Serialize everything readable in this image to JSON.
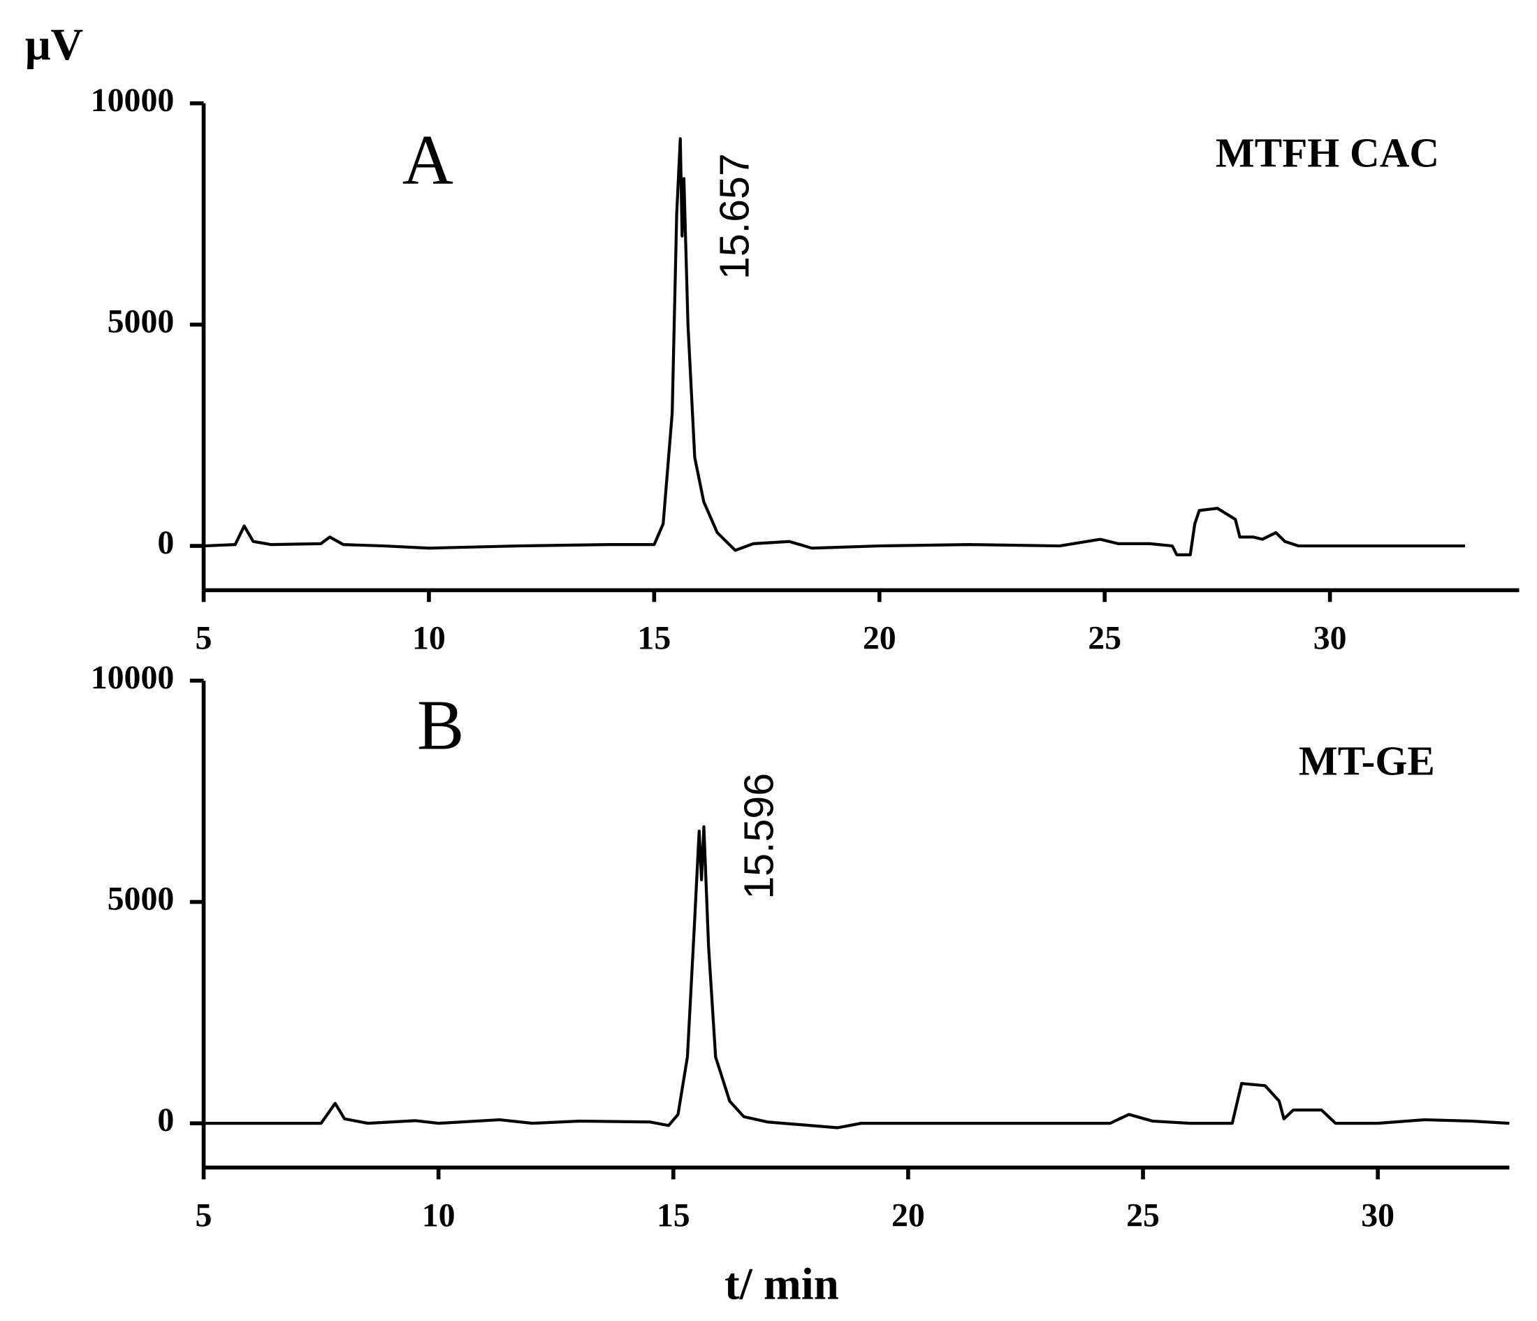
{
  "chart_data": [
    {
      "type": "line",
      "y_label": "μV",
      "panel_label": "A",
      "annotation": "MTFH CAC",
      "peak_label": "15.657",
      "xlim": [
        5,
        34.2
      ],
      "xticks": [
        5,
        10,
        15,
        20,
        25,
        30
      ],
      "ylim": [
        -1000,
        10000
      ],
      "yticks": [
        0,
        5000,
        10000
      ],
      "series": [
        {
          "color": "#000000",
          "x": [
            5,
            5.7,
            5.9,
            6.1,
            6.5,
            7.6,
            7.8,
            8.1,
            9,
            10,
            12,
            14,
            15,
            15.2,
            15.4,
            15.5,
            15.58,
            15.62,
            15.66,
            15.75,
            15.9,
            16.1,
            16.4,
            16.6,
            16.8,
            17.2,
            18,
            18.5,
            20,
            22,
            24,
            24.9,
            25.3,
            26,
            26.5,
            26.6,
            26.9,
            27.0,
            27.1,
            27.5,
            27.9,
            28.0,
            28.3,
            28.5,
            28.8,
            29.0,
            29.3,
            33
          ],
          "values": [
            0,
            30,
            450,
            100,
            30,
            50,
            200,
            30,
            0,
            -50,
            0,
            30,
            30,
            500,
            3000,
            7500,
            9200,
            7000,
            8300,
            5000,
            2000,
            1000,
            300,
            100,
            -100,
            50,
            100,
            -50,
            0,
            30,
            0,
            150,
            50,
            50,
            0,
            -200,
            -200,
            500,
            800,
            850,
            600,
            200,
            200,
            150,
            300,
            100,
            0,
            0
          ]
        }
      ]
    },
    {
      "type": "line",
      "x_label": "t/ min",
      "panel_label": "B",
      "annotation": "MT-GE",
      "peak_label": "15.596",
      "xlim": [
        5,
        32.8
      ],
      "xticks": [
        5,
        10,
        15,
        20,
        25,
        30
      ],
      "ylim": [
        -1000,
        10000
      ],
      "yticks": [
        0,
        5000,
        10000
      ],
      "series": [
        {
          "color": "#000000",
          "x": [
            5,
            7.5,
            7.7,
            7.8,
            8.0,
            8.5,
            9.5,
            10,
            11.3,
            12,
            13,
            14.5,
            14.9,
            15.1,
            15.3,
            15.45,
            15.55,
            15.6,
            15.65,
            15.75,
            15.9,
            16.2,
            16.5,
            17,
            18.5,
            19,
            22,
            24.3,
            24.7,
            25.2,
            26,
            26.9,
            27.1,
            27.6,
            27.9,
            28.0,
            28.2,
            28.8,
            29.1,
            30,
            31,
            32,
            32.8
          ],
          "values": [
            0,
            0,
            300,
            450,
            100,
            0,
            60,
            0,
            80,
            0,
            50,
            30,
            -50,
            200,
            1500,
            4500,
            6600,
            5500,
            6700,
            4000,
            1500,
            500,
            150,
            30,
            -100,
            0,
            0,
            0,
            200,
            50,
            0,
            0,
            900,
            850,
            500,
            100,
            300,
            300,
            0,
            0,
            80,
            50,
            0
          ]
        }
      ]
    }
  ]
}
